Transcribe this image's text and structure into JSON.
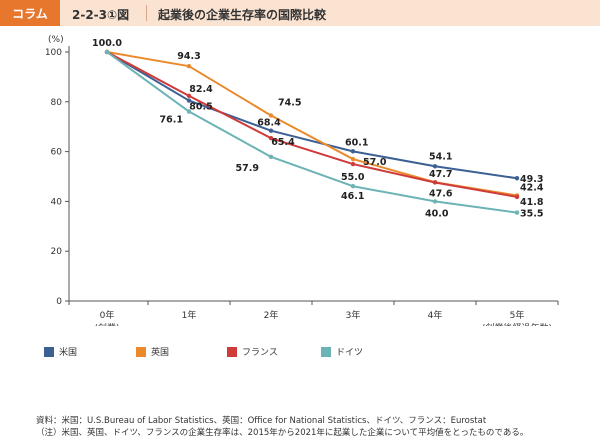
{
  "header": {
    "tag": "コラム",
    "figure_number": "2-2-3①図",
    "title": "起業後の企業生存率の国際比較"
  },
  "chart_data": {
    "type": "line",
    "ylabel": "(%)",
    "ylim": [
      0,
      100
    ],
    "yticks": [
      0,
      20,
      40,
      60,
      80,
      100
    ],
    "x": [
      "0年",
      "1年",
      "2年",
      "3年",
      "4年",
      "5年"
    ],
    "x_sublabels": [
      "(創業)",
      "",
      "",
      "",
      "",
      "(創業後経過年数)"
    ],
    "grid": false,
    "legend_position": "bottom-left",
    "series": [
      {
        "name": "米国",
        "color": "#3c5f94",
        "values": [
          100.0,
          80.5,
          68.4,
          60.1,
          54.1,
          49.3
        ]
      },
      {
        "name": "英国",
        "color": "#ea8a2b",
        "values": [
          100.0,
          94.3,
          74.5,
          57.0,
          47.7,
          42.4
        ]
      },
      {
        "name": "フランス",
        "color": "#cf3a3a",
        "values": [
          100.0,
          82.4,
          65.4,
          55.0,
          47.6,
          41.8
        ]
      },
      {
        "name": "ドイツ",
        "color": "#6bb3b5",
        "values": [
          100.0,
          76.1,
          57.9,
          46.1,
          40.0,
          35.5
        ]
      }
    ],
    "data_labels": [
      {
        "series": 0,
        "index": 0,
        "text": "100.0"
      },
      {
        "series": 1,
        "index": 1,
        "text": "94.3"
      },
      {
        "series": 2,
        "index": 1,
        "text": "82.4"
      },
      {
        "series": 0,
        "index": 1,
        "text": "80.5"
      },
      {
        "series": 3,
        "index": 1,
        "text": "76.1"
      },
      {
        "series": 1,
        "index": 2,
        "text": "74.5"
      },
      {
        "series": 0,
        "index": 2,
        "text": "68.4"
      },
      {
        "series": 2,
        "index": 2,
        "text": "65.4"
      },
      {
        "series": 3,
        "index": 2,
        "text": "57.9"
      },
      {
        "series": 0,
        "index": 3,
        "text": "60.1"
      },
      {
        "series": 1,
        "index": 3,
        "text": "57.0"
      },
      {
        "series": 2,
        "index": 3,
        "text": "55.0"
      },
      {
        "series": 3,
        "index": 3,
        "text": "46.1"
      },
      {
        "series": 0,
        "index": 4,
        "text": "54.1"
      },
      {
        "series": 1,
        "index": 4,
        "text": "47.7"
      },
      {
        "series": 2,
        "index": 4,
        "text": "47.6"
      },
      {
        "series": 3,
        "index": 4,
        "text": "40.0"
      },
      {
        "series": 0,
        "index": 5,
        "text": "49.3"
      },
      {
        "series": 1,
        "index": 5,
        "text": "42.4"
      },
      {
        "series": 2,
        "index": 5,
        "text": "41.8"
      },
      {
        "series": 3,
        "index": 5,
        "text": "35.5"
      }
    ]
  },
  "footer": {
    "source": "資料：米国：U.S.Bureau of Labor Statistics、英国：Office for National Statistics、ドイツ、フランス：Eurostat",
    "note": "（注）米国、英国、ドイツ、フランスの企業生存率は、2015年から2021年に起業した企業について平均値をとったものである。"
  }
}
